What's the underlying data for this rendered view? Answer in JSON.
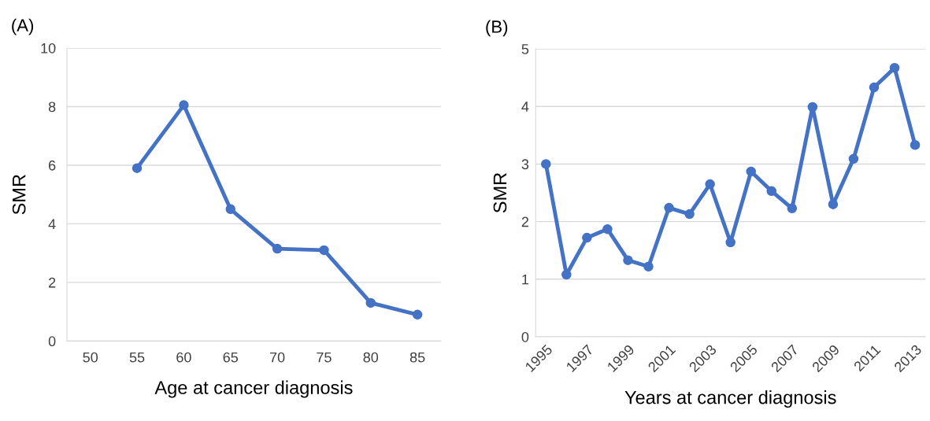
{
  "chart_data": [
    {
      "type": "line",
      "title": "(A)",
      "xlabel": "Age at cancer diagnosis",
      "ylabel": "SMR",
      "categories": [
        "50",
        "55",
        "60",
        "65",
        "70",
        "75",
        "80",
        "85"
      ],
      "series": [
        {
          "color": "#4472c4",
          "values": [
            null,
            5.9,
            8.05,
            4.5,
            3.15,
            3.1,
            1.3,
            0.9
          ]
        }
      ],
      "ylim": [
        0,
        10
      ],
      "yticks": [
        0,
        2,
        4,
        6,
        8,
        10
      ],
      "grid": "y",
      "marker": "circle",
      "line_style": "solid"
    },
    {
      "type": "line",
      "title": "(B)",
      "xlabel": "Years at cancer diagnosis",
      "ylabel": "SMR",
      "categories": [
        "1995",
        null,
        "1997",
        null,
        "1999",
        null,
        "2001",
        null,
        "2003",
        null,
        "2005",
        null,
        "2007",
        null,
        "2009",
        null,
        "2011",
        null,
        "2013"
      ],
      "series": [
        {
          "color": "#4472c4",
          "values": [
            3.0,
            1.08,
            1.72,
            1.87,
            1.33,
            1.22,
            2.24,
            2.13,
            2.65,
            1.64,
            2.87,
            2.53,
            2.23,
            3.99,
            2.3,
            3.09,
            4.33,
            4.67,
            3.33
          ]
        }
      ],
      "ylim": [
        0,
        5
      ],
      "yticks": [
        0,
        1,
        2,
        3,
        4,
        5
      ],
      "grid": "y",
      "marker": "circle",
      "line_style": "solid"
    }
  ]
}
